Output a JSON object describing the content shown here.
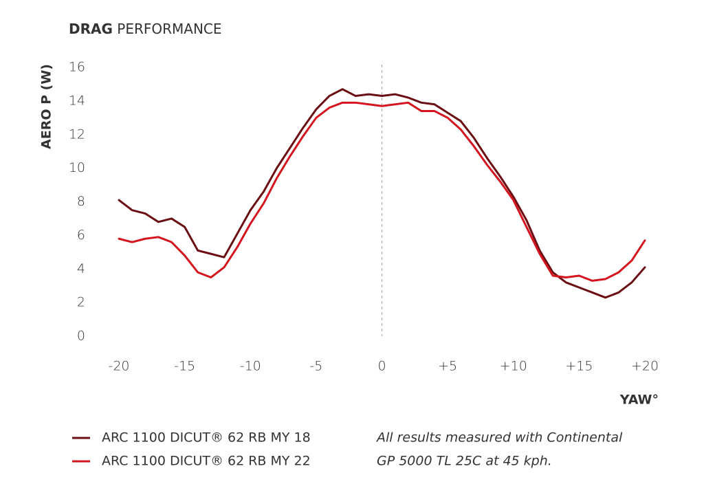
{
  "chart_data": {
    "type": "line",
    "title_parts": [
      "DRAG",
      "PERFORMANCE"
    ],
    "y_label": "AERO P (W)",
    "x_label": "YAW°",
    "xlim": [
      -20,
      20
    ],
    "ylim": [
      0,
      16
    ],
    "yticks": [
      0,
      2,
      4,
      6,
      8,
      10,
      12,
      14,
      16
    ],
    "xticks": [
      -20,
      -15,
      -10,
      -5,
      0,
      {
        "value": 5,
        "label": "+5"
      },
      {
        "value": 10,
        "label": "+10"
      },
      {
        "value": 15,
        "label": "+15"
      },
      {
        "value": 20,
        "label": "+20"
      }
    ],
    "vline": 0,
    "x": [
      -20,
      -19,
      -18,
      -17,
      -16,
      -15,
      -14,
      -13,
      -12,
      -11,
      -10,
      -9,
      -8,
      -7,
      -6,
      -5,
      -4,
      -3,
      -2,
      -1,
      0,
      1,
      2,
      3,
      4,
      5,
      6,
      7,
      8,
      9,
      10,
      11,
      12,
      13,
      14,
      15,
      16,
      17,
      18,
      19,
      20
    ],
    "series": [
      {
        "name": "ARC 1100 DICUT® 62 RB MY 18",
        "color": "#6b0f14",
        "values": [
          8.1,
          7.5,
          7.3,
          6.8,
          7.0,
          6.5,
          5.1,
          4.9,
          4.7,
          6.1,
          7.5,
          8.6,
          10.0,
          11.2,
          12.4,
          13.5,
          14.3,
          14.7,
          14.3,
          14.4,
          14.3,
          14.4,
          14.2,
          13.9,
          13.8,
          13.3,
          12.8,
          11.8,
          10.6,
          9.5,
          8.3,
          6.9,
          5.1,
          3.8,
          3.2,
          2.9,
          2.6,
          2.3,
          2.6,
          3.2,
          4.1
        ]
      },
      {
        "name": "ARC 1100 DICUT® 62 RB MY 22",
        "color": "#d4141e",
        "values": [
          5.8,
          5.6,
          5.8,
          5.9,
          5.6,
          4.8,
          3.8,
          3.5,
          4.1,
          5.3,
          6.7,
          7.9,
          9.4,
          10.7,
          11.9,
          13.0,
          13.6,
          13.9,
          13.9,
          13.8,
          13.7,
          13.8,
          13.9,
          13.4,
          13.4,
          13.0,
          12.3,
          11.3,
          10.2,
          9.2,
          8.1,
          6.5,
          4.9,
          3.6,
          3.5,
          3.6,
          3.3,
          3.4,
          3.8,
          4.5,
          5.7
        ]
      }
    ],
    "note": [
      "All results measured with Continental",
      "GP 5000 TL 25C at 45 kph."
    ]
  }
}
